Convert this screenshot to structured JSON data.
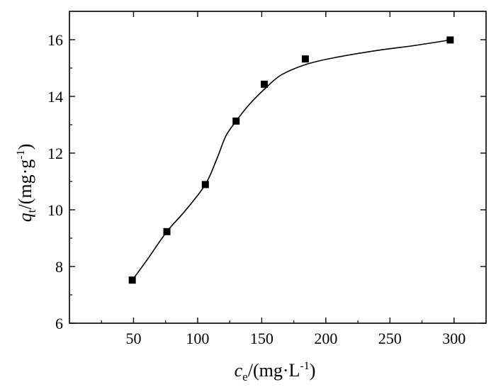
{
  "chart_data": {
    "type": "scatter",
    "title": "",
    "xlabel": {
      "main": "c",
      "sub": "e",
      "unit_prefix": "/(mg·L",
      "unit_sup": "-1",
      "unit_suffix": ")"
    },
    "ylabel": {
      "main": "q",
      "sub": "t",
      "unit_prefix": "/(mg·g",
      "unit_sup": "-1",
      "unit_suffix": ")"
    },
    "xlim": [
      0,
      325
    ],
    "ylim": [
      6,
      17
    ],
    "xticks": [
      50,
      100,
      150,
      200,
      250,
      300
    ],
    "yticks": [
      6,
      8,
      10,
      12,
      14,
      16
    ],
    "grid": false,
    "series": [
      {
        "marker": "square",
        "points": [
          {
            "x": 49,
            "y": 7.52
          },
          {
            "x": 76,
            "y": 9.23
          },
          {
            "x": 106,
            "y": 10.89
          },
          {
            "x": 130,
            "y": 13.13
          },
          {
            "x": 152,
            "y": 14.43
          },
          {
            "x": 184,
            "y": 15.32
          },
          {
            "x": 297,
            "y": 15.99
          }
        ]
      }
    ],
    "fit_curve": {
      "style": "smooth line",
      "points": [
        {
          "x": 49,
          "y": 7.52
        },
        {
          "x": 60,
          "y": 8.2
        },
        {
          "x": 76,
          "y": 9.23
        },
        {
          "x": 90,
          "y": 9.95
        },
        {
          "x": 106,
          "y": 10.89
        },
        {
          "x": 115,
          "y": 11.8
        },
        {
          "x": 122,
          "y": 12.6
        },
        {
          "x": 130,
          "y": 13.13
        },
        {
          "x": 140,
          "y": 13.7
        },
        {
          "x": 152,
          "y": 14.25
        },
        {
          "x": 165,
          "y": 14.75
        },
        {
          "x": 184,
          "y": 15.12
        },
        {
          "x": 205,
          "y": 15.35
        },
        {
          "x": 240,
          "y": 15.62
        },
        {
          "x": 270,
          "y": 15.8
        },
        {
          "x": 297,
          "y": 15.99
        }
      ]
    }
  }
}
